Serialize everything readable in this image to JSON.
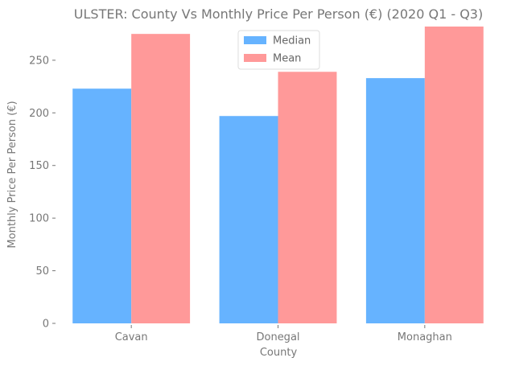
{
  "chart_data": {
    "type": "bar",
    "title": "ULSTER: County Vs Monthly Price Per Person (€) (2020 Q1 - Q3)",
    "xlabel": "County",
    "ylabel": "Monthly Price Per Person (€)",
    "categories": [
      "Cavan",
      "Donegal",
      "Monaghan"
    ],
    "series": [
      {
        "name": "Median",
        "values": [
          223,
          197,
          233
        ],
        "color": "#66b3ff"
      },
      {
        "name": "Mean",
        "values": [
          275,
          239,
          282
        ],
        "color": "#ff9999"
      }
    ],
    "ylim": [
      0,
      282
    ],
    "yticks": [
      0,
      50,
      100,
      150,
      200,
      250
    ],
    "grid": false,
    "legend": "top-center"
  }
}
